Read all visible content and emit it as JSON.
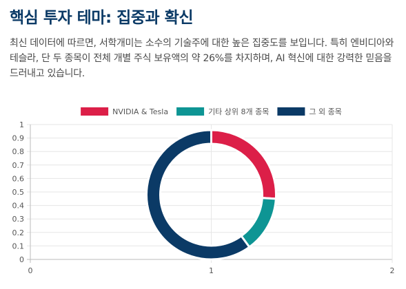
{
  "heading": {
    "title": "핵심 투자 테마: 집중과 확신"
  },
  "description": "최신 데이터에 따르면, 서학개미는 소수의 기술주에 대한 높은 집중도를 보입니다. 특히 엔비디아와 테슬라, 단 두 종목이 전체 개별 주식 보유액의 약 26%를 차지하며, AI 혁신에 대한 강력한 믿음을 드러내고 있습니다.",
  "chart_data": {
    "type": "pie",
    "variant": "doughnut",
    "labels": [
      "NVIDIA & Tesla",
      "기타 상위 8개 종목",
      "그 외 종목"
    ],
    "values": [
      26,
      14,
      60
    ],
    "colors": [
      "#dc1f48",
      "#0e9594",
      "#0b3a66"
    ],
    "x_ticks": [
      "0",
      "1",
      "2"
    ],
    "y_ticks": [
      "0",
      "0.1",
      "0.2",
      "0.3",
      "0.4",
      "0.5",
      "0.6",
      "0.7",
      "0.8",
      "0.9",
      "1"
    ],
    "xlim": [
      0,
      2
    ],
    "ylim": [
      0,
      1
    ],
    "grid": true,
    "legend_position": "top"
  }
}
